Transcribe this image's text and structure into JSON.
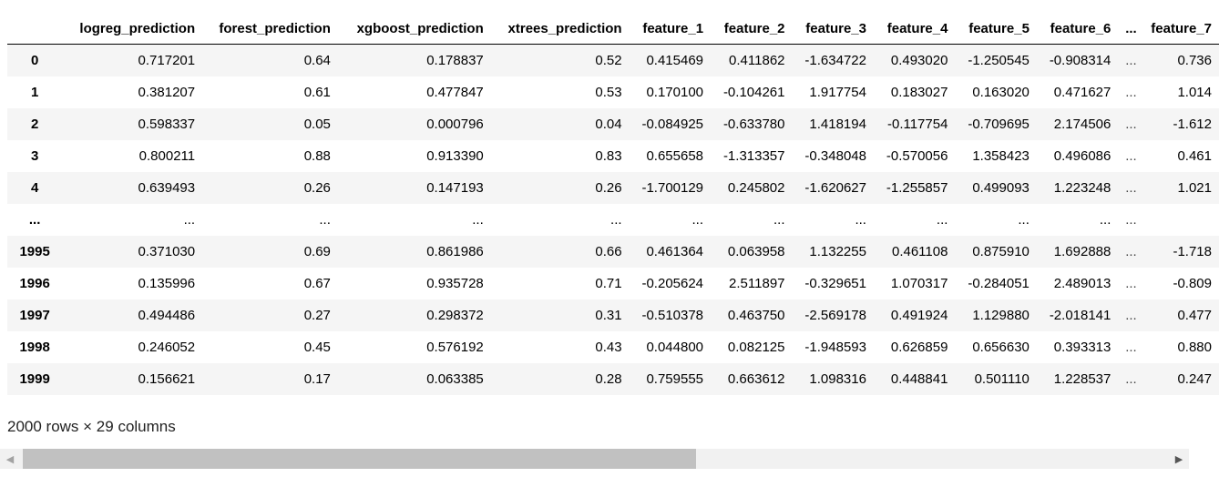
{
  "table": {
    "columns": [
      {
        "label": "",
        "width": 60,
        "kind": "index"
      },
      {
        "label": "logreg_prediction",
        "width": 153
      },
      {
        "label": "forest_prediction",
        "width": 148
      },
      {
        "label": "xgboost_prediction",
        "width": 167
      },
      {
        "label": "xtrees_prediction",
        "width": 151
      },
      {
        "label": "feature_1",
        "width": 89
      },
      {
        "label": "feature_2",
        "width": 89
      },
      {
        "label": "feature_3",
        "width": 89
      },
      {
        "label": "feature_4",
        "width": 89
      },
      {
        "label": "feature_5",
        "width": 89
      },
      {
        "label": "feature_6",
        "width": 89
      },
      {
        "label": "...",
        "width": 28,
        "kind": "ellipsis"
      },
      {
        "label": "feature_7",
        "width": 82
      }
    ],
    "rows": [
      {
        "index": "0",
        "cells": [
          "0.717201",
          "0.64",
          "0.178837",
          "0.52",
          "0.415469",
          "0.411862",
          "-1.634722",
          "0.493020",
          "-1.250545",
          "-0.908314",
          "...",
          "0.736"
        ]
      },
      {
        "index": "1",
        "cells": [
          "0.381207",
          "0.61",
          "0.477847",
          "0.53",
          "0.170100",
          "-0.104261",
          "1.917754",
          "0.183027",
          "0.163020",
          "0.471627",
          "...",
          "1.014"
        ]
      },
      {
        "index": "2",
        "cells": [
          "0.598337",
          "0.05",
          "0.000796",
          "0.04",
          "-0.084925",
          "-0.633780",
          "1.418194",
          "-0.117754",
          "-0.709695",
          "2.174506",
          "...",
          "-1.612"
        ]
      },
      {
        "index": "3",
        "cells": [
          "0.800211",
          "0.88",
          "0.913390",
          "0.83",
          "0.655658",
          "-1.313357",
          "-0.348048",
          "-0.570056",
          "1.358423",
          "0.496086",
          "...",
          "0.461"
        ]
      },
      {
        "index": "4",
        "cells": [
          "0.639493",
          "0.26",
          "0.147193",
          "0.26",
          "-1.700129",
          "0.245802",
          "-1.620627",
          "-1.255857",
          "0.499093",
          "1.223248",
          "...",
          "1.021"
        ]
      },
      {
        "index": "...",
        "cells": [
          "...",
          "...",
          "...",
          "...",
          "...",
          "...",
          "...",
          "...",
          "...",
          "...",
          "...",
          ""
        ]
      },
      {
        "index": "1995",
        "cells": [
          "0.371030",
          "0.69",
          "0.861986",
          "0.66",
          "0.461364",
          "0.063958",
          "1.132255",
          "0.461108",
          "0.875910",
          "1.692888",
          "...",
          "-1.718"
        ]
      },
      {
        "index": "1996",
        "cells": [
          "0.135996",
          "0.67",
          "0.935728",
          "0.71",
          "-0.205624",
          "2.511897",
          "-0.329651",
          "1.070317",
          "-0.284051",
          "2.489013",
          "...",
          "-0.809"
        ]
      },
      {
        "index": "1997",
        "cells": [
          "0.494486",
          "0.27",
          "0.298372",
          "0.31",
          "-0.510378",
          "0.463750",
          "-2.569178",
          "0.491924",
          "1.129880",
          "-2.018141",
          "...",
          "0.477"
        ]
      },
      {
        "index": "1998",
        "cells": [
          "0.246052",
          "0.45",
          "0.576192",
          "0.43",
          "0.044800",
          "0.082125",
          "-1.948593",
          "0.626859",
          "0.656630",
          "0.393313",
          "...",
          "0.880"
        ]
      },
      {
        "index": "1999",
        "cells": [
          "0.156621",
          "0.17",
          "0.063385",
          "0.28",
          "0.759555",
          "0.663612",
          "1.098316",
          "0.448841",
          "0.501110",
          "1.228537",
          "...",
          "0.247"
        ]
      }
    ]
  },
  "shape_caption": "2000 rows × 29 columns",
  "scrollbar": {
    "left_icon": "triangle-left-icon",
    "right_icon": "triangle-right-icon",
    "left_glyph": "◀",
    "right_glyph": "▶"
  }
}
